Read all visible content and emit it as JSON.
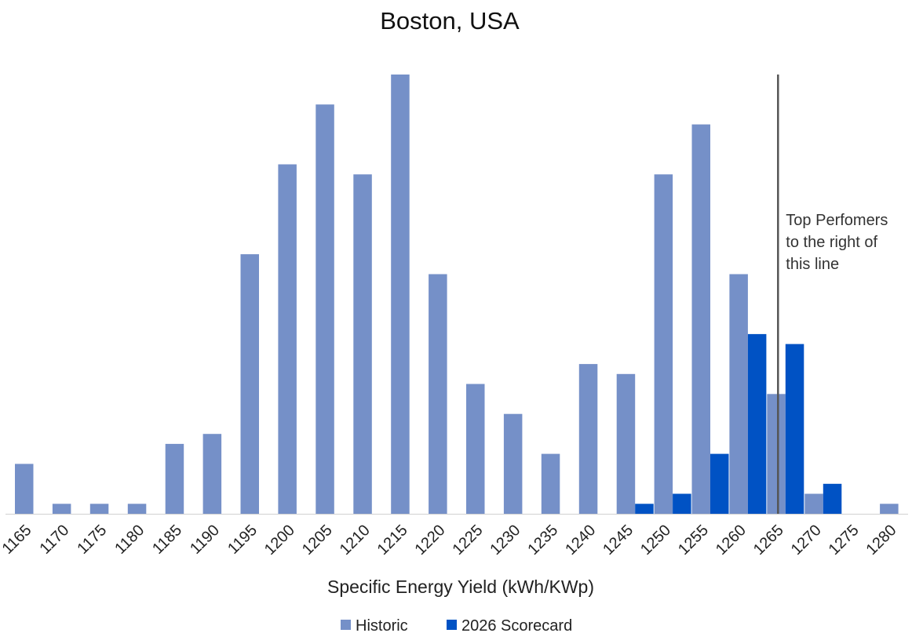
{
  "chart_data": {
    "type": "bar",
    "title": "Boston, USA",
    "xlabel": "Specific Energy Yield (kWh/KWp)",
    "ylabel": "",
    "categories": [
      "1165",
      "1170",
      "1175",
      "1180",
      "1185",
      "1190",
      "1195",
      "1200",
      "1205",
      "1210",
      "1215",
      "1220",
      "1225",
      "1230",
      "1235",
      "1240",
      "1245",
      "1250",
      "1255",
      "1260",
      "1265",
      "1270",
      "1275",
      "1280"
    ],
    "series": [
      {
        "name": "Historic",
        "color": "#7590c8",
        "values": [
          5,
          1,
          1,
          1,
          7,
          8,
          26,
          35,
          41,
          34,
          44,
          24,
          13,
          10,
          6,
          15,
          14,
          34,
          39,
          24,
          12,
          2,
          0,
          1
        ]
      },
      {
        "name": "2026 Scorecard",
        "color": "#0052c4",
        "values": [
          0,
          0,
          0,
          0,
          0,
          0,
          0,
          0,
          0,
          0,
          0,
          0,
          0,
          0,
          0,
          0,
          1,
          2,
          6,
          18,
          17,
          3,
          0,
          0
        ]
      }
    ],
    "ylim": [
      0,
      44
    ],
    "grid": false,
    "legend_position": "bottom",
    "reference_line": {
      "x": 1265,
      "label": [
        "Top Perfomers",
        "to the right of",
        "this line"
      ]
    }
  }
}
